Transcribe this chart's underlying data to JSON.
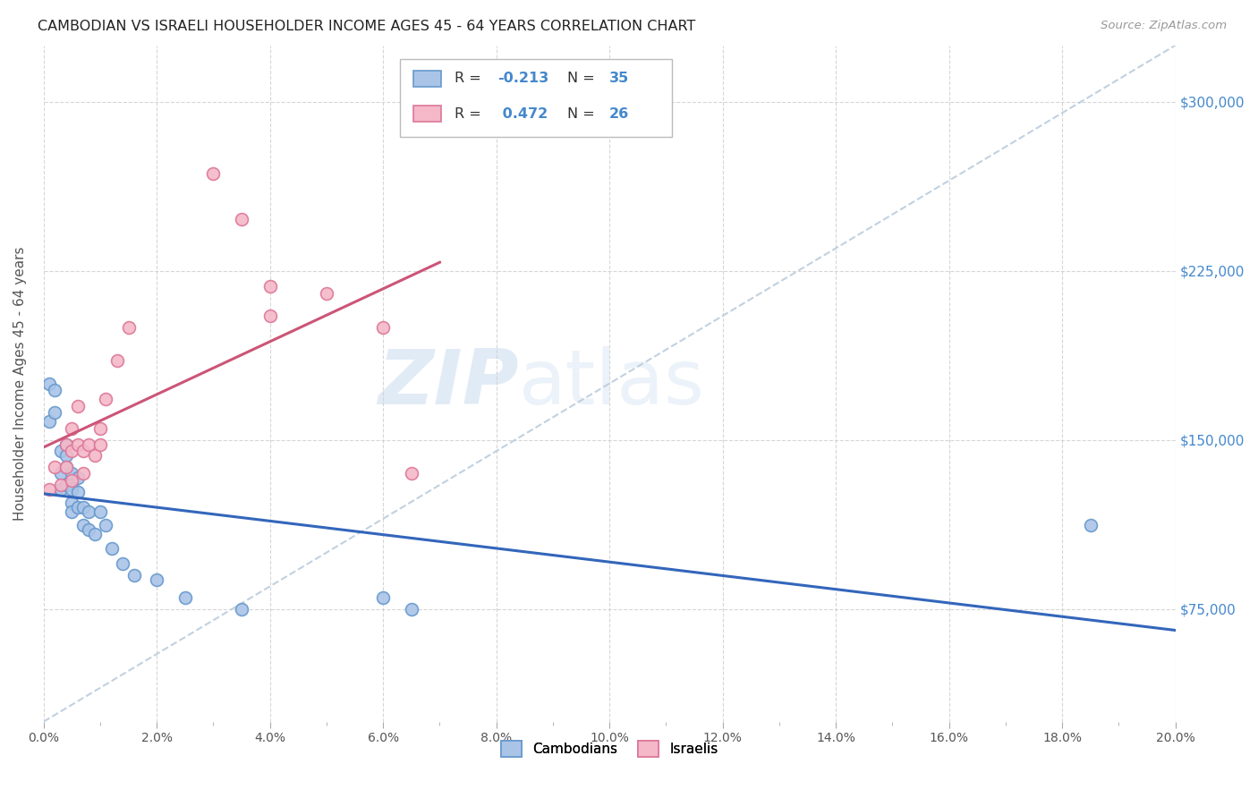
{
  "title": "CAMBODIAN VS ISRAELI HOUSEHOLDER INCOME AGES 45 - 64 YEARS CORRELATION CHART",
  "source": "Source: ZipAtlas.com",
  "ylabel": "Householder Income Ages 45 - 64 years",
  "watermark_zip": "ZIP",
  "watermark_atlas": "atlas",
  "xlim": [
    0.0,
    0.2
  ],
  "ylim": [
    25000,
    325000
  ],
  "yticks": [
    75000,
    150000,
    225000,
    300000
  ],
  "ytick_labels": [
    "$75,000",
    "$150,000",
    "$225,000",
    "$300,000"
  ],
  "xtick_labels": [
    "0.0%",
    "",
    "2.0%",
    "",
    "4.0%",
    "",
    "6.0%",
    "",
    "8.0%",
    "",
    "10.0%",
    "",
    "12.0%",
    "",
    "14.0%",
    "",
    "16.0%",
    "",
    "18.0%",
    "",
    "20.0%"
  ],
  "xticks_major": [
    0.0,
    0.02,
    0.04,
    0.06,
    0.08,
    0.1,
    0.12,
    0.14,
    0.16,
    0.18,
    0.2
  ],
  "cambodian_color": "#aac4e8",
  "cambodian_edge": "#6699cc",
  "israeli_color": "#f4b8c8",
  "israeli_edge": "#dd7799",
  "blue_line_color": "#3366bb",
  "pink_line_color": "#cc5577",
  "dashed_line_color": "#bbccdd",
  "background_color": "#ffffff",
  "grid_color": "#cccccc",
  "title_color": "#222222",
  "axis_label_color": "#555555",
  "right_tick_color": "#4488cc",
  "r_color": "#4488cc",
  "cambodian_x": [
    0.001,
    0.001,
    0.002,
    0.002,
    0.003,
    0.003,
    0.003,
    0.004,
    0.004,
    0.004,
    0.004,
    0.005,
    0.005,
    0.005,
    0.005,
    0.005,
    0.006,
    0.006,
    0.006,
    0.007,
    0.007,
    0.008,
    0.008,
    0.009,
    0.01,
    0.011,
    0.012,
    0.014,
    0.016,
    0.02,
    0.025,
    0.035,
    0.06,
    0.065,
    0.185
  ],
  "cambodian_y": [
    175000,
    158000,
    172000,
    162000,
    145000,
    135000,
    128000,
    148000,
    143000,
    138000,
    130000,
    135000,
    130000,
    128000,
    122000,
    118000,
    133000,
    127000,
    120000,
    120000,
    112000,
    118000,
    110000,
    108000,
    118000,
    112000,
    102000,
    95000,
    90000,
    88000,
    80000,
    75000,
    80000,
    75000,
    112000
  ],
  "israeli_x": [
    0.001,
    0.002,
    0.003,
    0.004,
    0.004,
    0.005,
    0.005,
    0.005,
    0.006,
    0.006,
    0.007,
    0.007,
    0.008,
    0.009,
    0.01,
    0.01,
    0.011,
    0.013,
    0.015,
    0.03,
    0.035,
    0.04,
    0.04,
    0.05,
    0.06,
    0.065
  ],
  "israeli_y": [
    128000,
    138000,
    130000,
    148000,
    138000,
    155000,
    145000,
    132000,
    165000,
    148000,
    145000,
    135000,
    148000,
    143000,
    155000,
    148000,
    168000,
    185000,
    200000,
    268000,
    248000,
    218000,
    205000,
    215000,
    200000,
    135000
  ],
  "marker_size": 100,
  "pink_line_xlim": [
    0.0,
    0.07
  ],
  "blue_line_xlim": [
    0.0,
    0.2
  ]
}
